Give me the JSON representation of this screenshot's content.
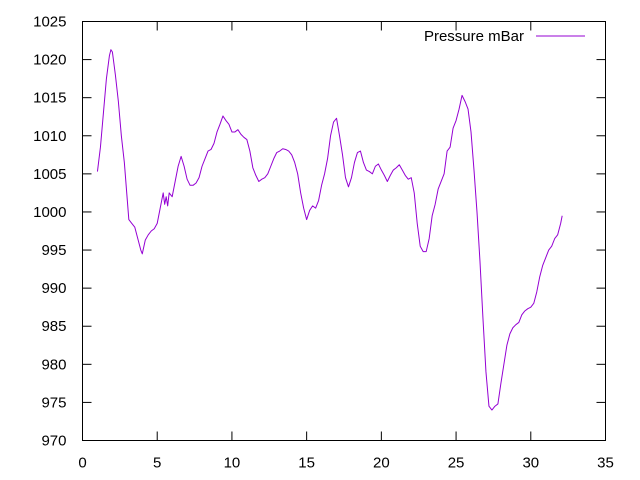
{
  "chart_data": {
    "type": "line",
    "title": "",
    "xlabel": "",
    "ylabel": "",
    "xlim": [
      0,
      35
    ],
    "ylim": [
      970,
      1025
    ],
    "x_ticks": [
      0,
      5,
      10,
      15,
      20,
      25,
      30,
      35
    ],
    "y_ticks": [
      970,
      975,
      980,
      985,
      990,
      995,
      1000,
      1005,
      1010,
      1015,
      1020,
      1025
    ],
    "grid": false,
    "legend": "top-right",
    "series": [
      {
        "name": "Pressure mBar",
        "color": "#9400d3",
        "points": [
          [
            1.0,
            1005.3
          ],
          [
            1.2,
            1008.5
          ],
          [
            1.4,
            1013.0
          ],
          [
            1.6,
            1017.5
          ],
          [
            1.8,
            1020.5
          ],
          [
            1.9,
            1021.3
          ],
          [
            2.0,
            1021.0
          ],
          [
            2.2,
            1018.0
          ],
          [
            2.4,
            1014.5
          ],
          [
            2.6,
            1010.0
          ],
          [
            2.8,
            1006.5
          ],
          [
            3.0,
            1001.5
          ],
          [
            3.1,
            999.0
          ],
          [
            3.3,
            998.5
          ],
          [
            3.5,
            998.0
          ],
          [
            3.7,
            996.5
          ],
          [
            3.9,
            995.0
          ],
          [
            4.0,
            994.5
          ],
          [
            4.2,
            996.3
          ],
          [
            4.4,
            997.0
          ],
          [
            4.6,
            997.5
          ],
          [
            4.8,
            997.8
          ],
          [
            5.0,
            998.5
          ],
          [
            5.2,
            1000.5
          ],
          [
            5.4,
            1002.5
          ],
          [
            5.5,
            1001.0
          ],
          [
            5.6,
            1002.0
          ],
          [
            5.7,
            1000.8
          ],
          [
            5.8,
            1002.5
          ],
          [
            6.0,
            1002.0
          ],
          [
            6.2,
            1004.0
          ],
          [
            6.4,
            1006.0
          ],
          [
            6.6,
            1007.3
          ],
          [
            6.8,
            1006.0
          ],
          [
            7.0,
            1004.3
          ],
          [
            7.2,
            1003.5
          ],
          [
            7.4,
            1003.5
          ],
          [
            7.6,
            1003.8
          ],
          [
            7.8,
            1004.5
          ],
          [
            8.0,
            1006.0
          ],
          [
            8.2,
            1007.0
          ],
          [
            8.4,
            1008.0
          ],
          [
            8.6,
            1008.2
          ],
          [
            8.8,
            1009.0
          ],
          [
            9.0,
            1010.5
          ],
          [
            9.2,
            1011.5
          ],
          [
            9.4,
            1012.6
          ],
          [
            9.6,
            1012.0
          ],
          [
            9.8,
            1011.5
          ],
          [
            10.0,
            1010.5
          ],
          [
            10.2,
            1010.5
          ],
          [
            10.4,
            1010.8
          ],
          [
            10.6,
            1010.2
          ],
          [
            10.8,
            1009.8
          ],
          [
            11.0,
            1009.5
          ],
          [
            11.2,
            1008.0
          ],
          [
            11.4,
            1005.8
          ],
          [
            11.6,
            1004.8
          ],
          [
            11.8,
            1004.0
          ],
          [
            12.0,
            1004.3
          ],
          [
            12.2,
            1004.5
          ],
          [
            12.4,
            1005.0
          ],
          [
            12.6,
            1006.0
          ],
          [
            12.8,
            1007.0
          ],
          [
            13.0,
            1007.8
          ],
          [
            13.2,
            1008.0
          ],
          [
            13.4,
            1008.3
          ],
          [
            13.6,
            1008.2
          ],
          [
            13.8,
            1008.0
          ],
          [
            14.0,
            1007.5
          ],
          [
            14.2,
            1006.5
          ],
          [
            14.4,
            1005.0
          ],
          [
            14.6,
            1002.5
          ],
          [
            14.8,
            1000.5
          ],
          [
            15.0,
            999.0
          ],
          [
            15.2,
            1000.2
          ],
          [
            15.4,
            1000.8
          ],
          [
            15.6,
            1000.5
          ],
          [
            15.8,
            1001.5
          ],
          [
            16.0,
            1003.5
          ],
          [
            16.2,
            1005.0
          ],
          [
            16.4,
            1007.0
          ],
          [
            16.6,
            1010.0
          ],
          [
            16.8,
            1011.8
          ],
          [
            17.0,
            1012.3
          ],
          [
            17.2,
            1010.0
          ],
          [
            17.4,
            1007.5
          ],
          [
            17.6,
            1004.5
          ],
          [
            17.8,
            1003.3
          ],
          [
            18.0,
            1004.5
          ],
          [
            18.2,
            1006.5
          ],
          [
            18.4,
            1007.8
          ],
          [
            18.6,
            1008.0
          ],
          [
            18.8,
            1006.5
          ],
          [
            19.0,
            1005.5
          ],
          [
            19.2,
            1005.3
          ],
          [
            19.4,
            1005.0
          ],
          [
            19.6,
            1006.0
          ],
          [
            19.8,
            1006.3
          ],
          [
            20.0,
            1005.5
          ],
          [
            20.2,
            1004.8
          ],
          [
            20.4,
            1004.0
          ],
          [
            20.6,
            1004.8
          ],
          [
            20.8,
            1005.5
          ],
          [
            21.0,
            1005.8
          ],
          [
            21.2,
            1006.2
          ],
          [
            21.4,
            1005.5
          ],
          [
            21.6,
            1004.8
          ],
          [
            21.8,
            1004.3
          ],
          [
            22.0,
            1004.5
          ],
          [
            22.2,
            1002.5
          ],
          [
            22.4,
            998.5
          ],
          [
            22.6,
            995.5
          ],
          [
            22.8,
            994.8
          ],
          [
            23.0,
            994.8
          ],
          [
            23.2,
            996.5
          ],
          [
            23.4,
            999.5
          ],
          [
            23.6,
            1001.0
          ],
          [
            23.8,
            1003.0
          ],
          [
            24.0,
            1004.0
          ],
          [
            24.2,
            1005.0
          ],
          [
            24.4,
            1008.0
          ],
          [
            24.6,
            1008.5
          ],
          [
            24.8,
            1011.0
          ],
          [
            25.0,
            1012.0
          ],
          [
            25.2,
            1013.5
          ],
          [
            25.4,
            1015.3
          ],
          [
            25.6,
            1014.5
          ],
          [
            25.8,
            1013.5
          ],
          [
            26.0,
            1010.5
          ],
          [
            26.2,
            1005.5
          ],
          [
            26.4,
            1000.0
          ],
          [
            26.6,
            993.5
          ],
          [
            26.8,
            986.0
          ],
          [
            27.0,
            979.0
          ],
          [
            27.2,
            974.5
          ],
          [
            27.4,
            974.0
          ],
          [
            27.6,
            974.5
          ],
          [
            27.8,
            974.8
          ],
          [
            28.0,
            977.5
          ],
          [
            28.2,
            980.0
          ],
          [
            28.4,
            982.5
          ],
          [
            28.6,
            984.0
          ],
          [
            28.8,
            984.8
          ],
          [
            29.0,
            985.2
          ],
          [
            29.2,
            985.5
          ],
          [
            29.4,
            986.5
          ],
          [
            29.6,
            987.0
          ],
          [
            29.8,
            987.3
          ],
          [
            30.0,
            987.5
          ],
          [
            30.2,
            988.0
          ],
          [
            30.4,
            989.5
          ],
          [
            30.6,
            991.5
          ],
          [
            30.8,
            993.0
          ],
          [
            31.0,
            994.0
          ],
          [
            31.2,
            995.0
          ],
          [
            31.4,
            995.5
          ],
          [
            31.6,
            996.5
          ],
          [
            31.8,
            997.0
          ],
          [
            32.0,
            998.5
          ],
          [
            32.1,
            999.5
          ]
        ]
      }
    ]
  }
}
